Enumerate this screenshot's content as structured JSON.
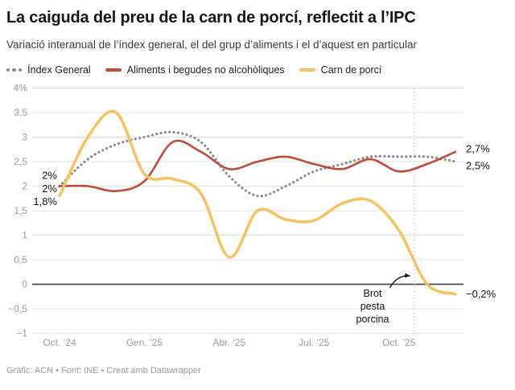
{
  "header": {
    "title": "La caiguda del preu de la carn de porcí, reflectit a l’IPC",
    "subtitle": "Variació interanual de l’índex general, el del grup d’aliments i el d’aquest en particular"
  },
  "legend": [
    {
      "label": "Índex General",
      "style": "dotted",
      "color": "#8b8b8b"
    },
    {
      "label": "Aliments i begudes no alcohòliques",
      "style": "solid",
      "color": "#c14b38"
    },
    {
      "label": "Carn de porcí",
      "style": "solid",
      "color": "#f6c25e"
    }
  ],
  "footer": {
    "credit": "Gràfic: ACN • Font: INE • Creat amb Datawrapper"
  },
  "colors": {
    "grid": "#e1e1e1",
    "zero_line": "#4a4a4a",
    "axis_text": "#9b9b9b",
    "event_line": "#bdbdbd",
    "annotation_text": "#111111",
    "value_label_text": "#161616",
    "series_gray": "#8b8b8b",
    "series_red": "#c14b38",
    "series_yellow": "#f6c25e"
  },
  "chart_data": {
    "type": "line",
    "title": "La caiguda del preu de la carn de porcí, reflectit a l’IPC",
    "subtitle": "Variació interanual de l’índex general, el del grup d’aliments i el d’aquest en particular",
    "ylabel": "",
    "xlabel": "",
    "ylim": [
      -1,
      4
    ],
    "grid": true,
    "legend_position": "top",
    "n_points": 15,
    "x_tick_labels": [
      {
        "index": 0,
        "label": "Oct. ’24"
      },
      {
        "index": 3,
        "label": "Gen. ’25"
      },
      {
        "index": 6,
        "label": "Abr. ’25"
      },
      {
        "index": 9,
        "label": "Jul. ’25"
      },
      {
        "index": 12,
        "label": "Oct. ’25"
      }
    ],
    "y_ticks": [
      {
        "value": 4,
        "label": "4%"
      },
      {
        "value": 3.5,
        "label": "3,5"
      },
      {
        "value": 3,
        "label": "3"
      },
      {
        "value": 2.5,
        "label": "2,5"
      },
      {
        "value": 2,
        "label": "2"
      },
      {
        "value": 1.5,
        "label": "1,5"
      },
      {
        "value": 1,
        "label": "1"
      },
      {
        "value": 0.5,
        "label": "0,5"
      },
      {
        "value": 0,
        "label": "0"
      },
      {
        "value": -0.5,
        "label": "−0,5"
      },
      {
        "value": -1,
        "label": "−1"
      }
    ],
    "series": [
      {
        "name": "Índex General",
        "style": "dotted",
        "color": "#8b8b8b",
        "values": [
          2.0,
          2.55,
          2.85,
          3.0,
          3.1,
          2.9,
          2.2,
          1.8,
          2.0,
          2.3,
          2.45,
          2.6,
          2.6,
          2.6,
          2.5
        ],
        "start_label": "2%",
        "start_label_value": 2.22,
        "end_label": "2,5%",
        "end_label_value": 2.42
      },
      {
        "name": "Aliments i begudes no alcohòliques",
        "style": "solid",
        "color": "#c14b38",
        "values": [
          2.0,
          2.0,
          1.9,
          2.1,
          2.9,
          2.7,
          2.35,
          2.5,
          2.6,
          2.45,
          2.35,
          2.55,
          2.3,
          2.45,
          2.7
        ],
        "start_label": "2%",
        "start_label_value": 1.95,
        "end_label": "2,7%",
        "end_label_value": 2.76
      },
      {
        "name": "Carn de porcí",
        "style": "solid",
        "color": "#f6c25e",
        "values": [
          1.8,
          3.0,
          3.5,
          2.25,
          2.15,
          1.85,
          0.55,
          1.5,
          1.32,
          1.3,
          1.65,
          1.7,
          1.1,
          0.0,
          -0.2
        ],
        "start_label": "1,8%",
        "start_label_value": 1.69,
        "end_label": "−0,2%",
        "end_label_value": -0.2
      }
    ],
    "annotations": {
      "event_line_x_index": 12.55,
      "note_lines": [
        "Brot",
        "pesta",
        "porcina"
      ],
      "note_x_index": 11.07,
      "note_top_value": -0.25,
      "arrow": {
        "from": [
          11.68,
          -0.07
        ],
        "ctrl": [
          11.95,
          0.2
        ],
        "to": [
          12.4,
          0.17
        ]
      }
    }
  }
}
